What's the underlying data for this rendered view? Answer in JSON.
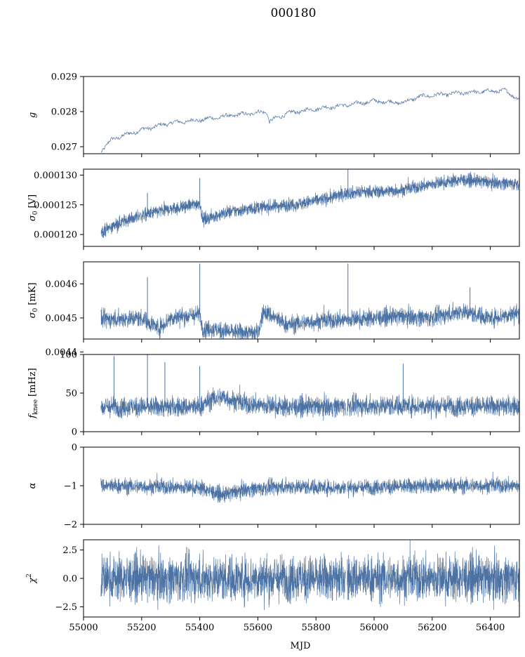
{
  "figure_title": "000180",
  "xlabel": "MJD",
  "colors": {
    "series": "#4c72a4",
    "axes": "#000000"
  },
  "chart_data": [
    {
      "type": "line",
      "ylabel": "g",
      "ylabel_sub": "",
      "xlim": [
        55000,
        56500
      ],
      "ylim": [
        0.0268,
        0.029
      ],
      "yticks": [
        0.027,
        0.028,
        0.029
      ],
      "yticklabels": [
        "0.027",
        "0.028",
        "0.029"
      ],
      "xticks": [
        55000,
        55200,
        55400,
        55600,
        55800,
        56000,
        56200,
        56400
      ],
      "xticklabels": [
        "",
        "",
        "",
        "",
        "",
        "",
        "",
        ""
      ],
      "x_start": 55060,
      "x_end": 56500,
      "gap_at": null,
      "trend": [
        [
          55060,
          0.02688
        ],
        [
          55100,
          0.02722
        ],
        [
          55200,
          0.02748
        ],
        [
          55300,
          0.02768
        ],
        [
          55400,
          0.02776
        ],
        [
          55500,
          0.02788
        ],
        [
          55630,
          0.028
        ],
        [
          55640,
          0.02772
        ],
        [
          55700,
          0.02795
        ],
        [
          55800,
          0.02808
        ],
        [
          55900,
          0.02818
        ],
        [
          56000,
          0.0283
        ],
        [
          56100,
          0.02825
        ],
        [
          56150,
          0.02842
        ],
        [
          56250,
          0.0285
        ],
        [
          56350,
          0.02856
        ],
        [
          56450,
          0.0286
        ],
        [
          56500,
          0.02835
        ]
      ],
      "noise": 6e-05,
      "spikes": [],
      "grid": false,
      "thin": true
    },
    {
      "type": "line",
      "ylabel": "σ",
      "ylabel_sub": "0",
      "ylabel_unit": "[V]",
      "xlim": [
        55000,
        56500
      ],
      "ylim": [
        0.000118,
        0.000131
      ],
      "yticks": [
        0.00012,
        0.000125,
        0.00013
      ],
      "yticklabels": [
        "0.000120",
        "0.000125",
        "0.000130"
      ],
      "xticks": [
        55000,
        55200,
        55400,
        55600,
        55800,
        56000,
        56200,
        56400
      ],
      "xticklabels": [
        "",
        "",
        "",
        "",
        "",
        "",
        "",
        ""
      ],
      "x_start": 55060,
      "x_end": 56500,
      "gap_at": null,
      "trend": [
        [
          55060,
          0.0001205
        ],
        [
          55150,
          0.0001225
        ],
        [
          55250,
          0.0001238
        ],
        [
          55395,
          0.0001252
        ],
        [
          55400,
          0.0001255
        ],
        [
          55410,
          0.0001225
        ],
        [
          55500,
          0.0001238
        ],
        [
          55600,
          0.0001245
        ],
        [
          55750,
          0.0001252
        ],
        [
          55850,
          0.0001262
        ],
        [
          55910,
          0.000127
        ],
        [
          56000,
          0.0001272
        ],
        [
          56100,
          0.0001275
        ],
        [
          56200,
          0.0001285
        ],
        [
          56300,
          0.0001292
        ],
        [
          56400,
          0.0001288
        ],
        [
          56500,
          0.0001285
        ]
      ],
      "noise": 5.5e-07,
      "spikes": [
        [
          55220,
          0.000127
        ],
        [
          55400,
          0.0001295
        ],
        [
          55910,
          0.000131
        ],
        [
          56300,
          0.00013
        ]
      ],
      "grid": false,
      "thin": false
    },
    {
      "type": "line",
      "ylabel": "σ",
      "ylabel_sub": "0",
      "ylabel_unit": "[mK]",
      "xlim": [
        55000,
        56500
      ],
      "ylim": [
        0.004438,
        0.004665
      ],
      "yticks": [
        0.0044,
        0.0045,
        0.0046
      ],
      "yticklabels": [
        "0.0044",
        "0.0045",
        "0.0046"
      ],
      "xticks": [
        55000,
        55200,
        55400,
        55600,
        55800,
        56000,
        56200,
        56400
      ],
      "xticklabels": [
        "",
        "",
        "",
        "",
        "",
        "",
        "",
        ""
      ],
      "x_start": 55060,
      "x_end": 56500,
      "gap_at": null,
      "trend": [
        [
          55060,
          0.004495
        ],
        [
          55200,
          0.0045
        ],
        [
          55260,
          0.00447
        ],
        [
          55300,
          0.0045
        ],
        [
          55400,
          0.00451
        ],
        [
          55410,
          0.00447
        ],
        [
          55500,
          0.00446
        ],
        [
          55600,
          0.004455
        ],
        [
          55620,
          0.00452
        ],
        [
          55700,
          0.00448
        ],
        [
          55800,
          0.00449
        ],
        [
          55900,
          0.004495
        ],
        [
          56000,
          0.0045
        ],
        [
          56100,
          0.004505
        ],
        [
          56200,
          0.0045
        ],
        [
          56300,
          0.00452
        ],
        [
          56400,
          0.0045
        ],
        [
          56500,
          0.004515
        ]
      ],
      "noise": 1.3e-05,
      "spikes": [
        [
          55220,
          0.00462
        ],
        [
          55400,
          0.00466
        ],
        [
          55910,
          0.00466
        ],
        [
          56330,
          0.00459
        ]
      ],
      "grid": false,
      "thin": false
    },
    {
      "type": "line",
      "ylabel": "f",
      "ylabel_sub": "knee",
      "ylabel_unit": "[mHz]",
      "xlim": [
        55000,
        56500
      ],
      "ylim": [
        0,
        100
      ],
      "yticks": [
        0,
        50,
        100
      ],
      "yticklabels": [
        "0",
        "50",
        "100"
      ],
      "xticks": [
        55000,
        55200,
        55400,
        55600,
        55800,
        56000,
        56200,
        56400
      ],
      "xticklabels": [
        "",
        "",
        "",
        "",
        "",
        "",
        "",
        ""
      ],
      "x_start": 55060,
      "x_end": 56500,
      "gap_at": 55905,
      "trend": [
        [
          55060,
          32
        ],
        [
          55400,
          32
        ],
        [
          55440,
          42
        ],
        [
          55480,
          45
        ],
        [
          55550,
          36
        ],
        [
          55700,
          32
        ],
        [
          55900,
          33
        ],
        [
          56100,
          34
        ],
        [
          56300,
          33
        ],
        [
          56500,
          33
        ]
      ],
      "noise": 6.5,
      "spikes": [
        [
          55105,
          98
        ],
        [
          55220,
          100
        ],
        [
          55280,
          90
        ],
        [
          55400,
          85
        ],
        [
          56100,
          88
        ]
      ],
      "grid": false,
      "thin": false
    },
    {
      "type": "line",
      "ylabel": "α",
      "ylabel_sub": "",
      "xlim": [
        55000,
        56500
      ],
      "ylim": [
        -2,
        0
      ],
      "yticks": [
        -2,
        -1,
        0
      ],
      "yticklabels": [
        "−2",
        "−1",
        "0"
      ],
      "xticks": [
        55000,
        55200,
        55400,
        55600,
        55800,
        56000,
        56200,
        56400
      ],
      "xticklabels": [
        "",
        "",
        "",
        "",
        "",
        "",
        "",
        ""
      ],
      "x_start": 55060,
      "x_end": 56500,
      "gap_at": 55905,
      "trend": [
        [
          55060,
          -1.0
        ],
        [
          55400,
          -1.05
        ],
        [
          55480,
          -1.25
        ],
        [
          55550,
          -1.1
        ],
        [
          55700,
          -1.02
        ],
        [
          55900,
          -1.05
        ],
        [
          56200,
          -1.0
        ],
        [
          56500,
          -1.0
        ]
      ],
      "noise": 0.1,
      "spikes": [],
      "grid": false,
      "thin": false
    },
    {
      "type": "line",
      "ylabel": "χ",
      "ylabel_sub": "",
      "ylabel_sup": "2",
      "xlim": [
        55000,
        56500
      ],
      "ylim": [
        -3.4,
        3.4
      ],
      "yticks": [
        -2.5,
        0.0,
        2.5
      ],
      "yticklabels": [
        "−2.5",
        "0.0",
        "2.5"
      ],
      "xticks": [
        55000,
        55200,
        55400,
        55600,
        55800,
        56000,
        56200,
        56400
      ],
      "xticklabels": [
        "55000",
        "55200",
        "55400",
        "55600",
        "55800",
        "56000",
        "56200",
        "56400"
      ],
      "x_start": 55060,
      "x_end": 56500,
      "gap_at": 55905,
      "trend": [
        [
          55060,
          0
        ],
        [
          56500,
          0
        ]
      ],
      "noise": 1.0,
      "spikes": [],
      "grid": false,
      "thin": false
    }
  ]
}
